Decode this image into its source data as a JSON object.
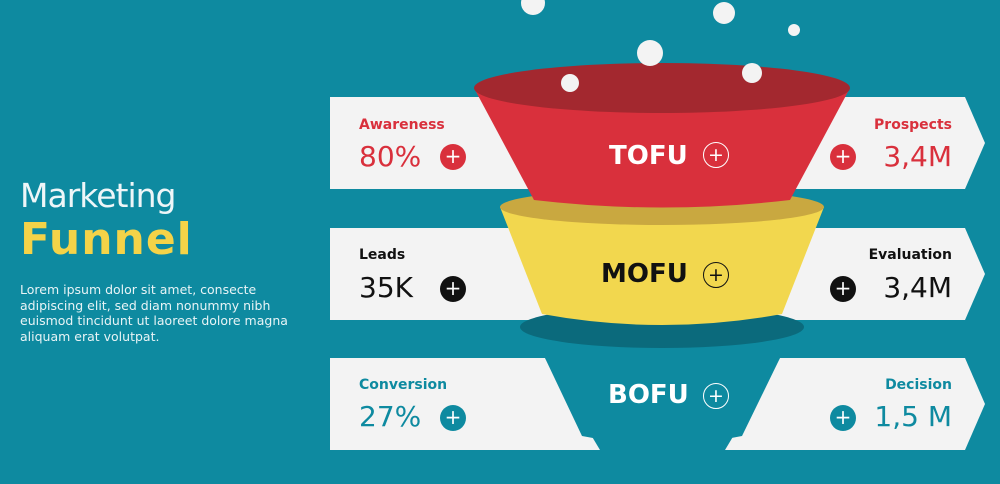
{
  "title": {
    "line1": "Marketing",
    "line2": "Funnel"
  },
  "description": "Lorem ipsum dolor sit amet, consecte adipiscing elit, sed diam nonummy nibh euismod tincidunt ut laoreet dolore magna aliquam erat volutpat.",
  "colors": {
    "background": "#0e8aa0",
    "tofu": "#d9303c",
    "mofu": "#f2d74e",
    "bofu": "#0e8aa0",
    "band": "#f3f3f3",
    "title_accent": "#f4d348"
  },
  "stages": [
    {
      "name": "TOFU",
      "left_label": "Awareness",
      "left_value": "80%",
      "right_label": "Prospects",
      "right_value": "3,4M",
      "color": "#d9303c",
      "icon": "plus-circle-icon"
    },
    {
      "name": "MOFU",
      "left_label": "Leads",
      "left_value": "35K",
      "right_label": "Evaluation",
      "right_value": "3,4M",
      "color": "#111111",
      "icon": "plus-circle-icon"
    },
    {
      "name": "BOFU",
      "left_label": "Conversion",
      "left_value": "27%",
      "right_label": "Decision",
      "right_value": "1,5 M",
      "color": "#0e8aa0",
      "icon": "plus-circle-icon"
    }
  ]
}
